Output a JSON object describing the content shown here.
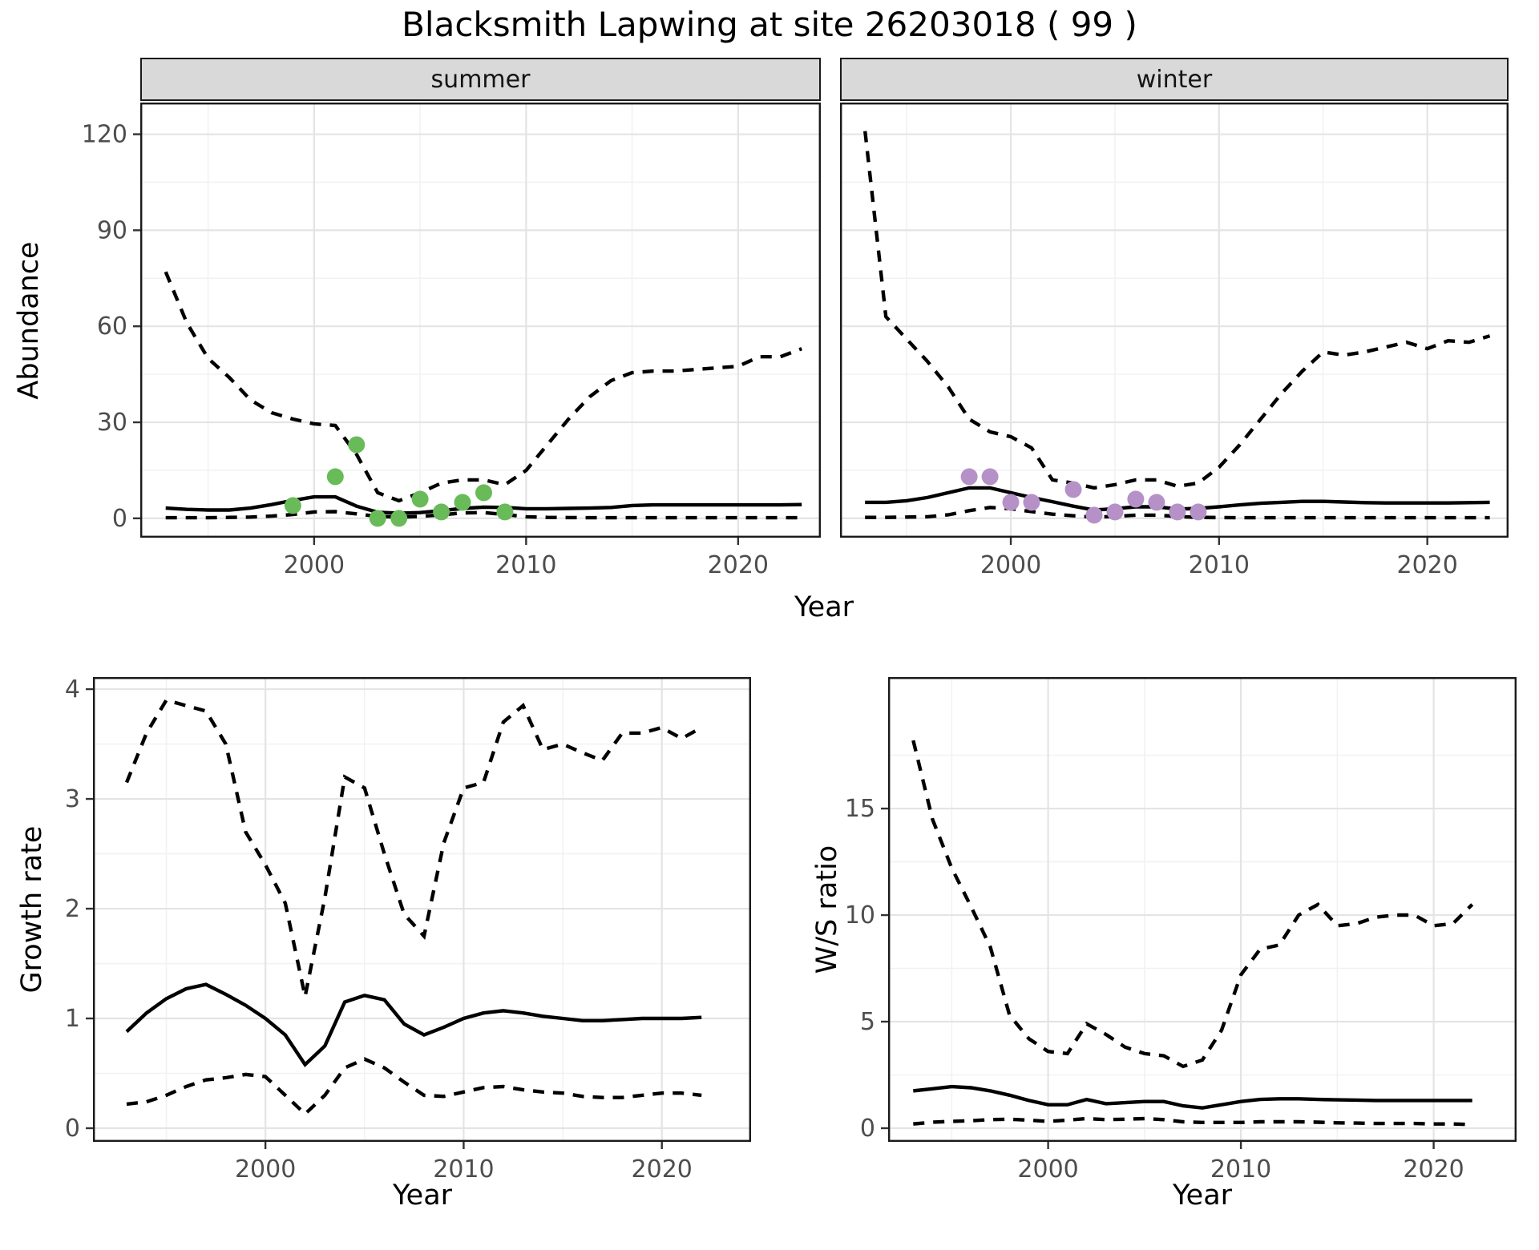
{
  "title": "Blacksmith Lapwing at site 26203018 ( 99 )",
  "colors": {
    "line": "#000000",
    "summer_point": "#69bb59",
    "winter_point": "#b691c8",
    "grid_major": "#e4e4e4",
    "grid_minor": "#f2f2f2",
    "panel_border": "#1a1a1a",
    "tick_mark": "#333333",
    "tick_label": "#4d4d4d",
    "strip_bg": "#d9d9d9"
  },
  "chart_data": [
    {
      "type": "line",
      "facet_label": "summer",
      "xlabel": "Year",
      "ylabel": "Abundance",
      "xlim": [
        1991.8,
        2023.9
      ],
      "ylim": [
        -6.04,
        129.9
      ],
      "xticks": [
        2000,
        2010,
        2020
      ],
      "yticks": [
        0,
        30,
        60,
        90,
        120
      ],
      "xminor": [
        1995,
        2005,
        2015
      ],
      "yminor": [
        15,
        45,
        75,
        105
      ],
      "grid": true,
      "legend": "none",
      "x": [
        1993,
        1994,
        1995,
        1996,
        1997,
        1998,
        1999,
        2000,
        2001,
        2002,
        2003,
        2004,
        2005,
        2006,
        2007,
        2008,
        2009,
        2010,
        2011,
        2012,
        2013,
        2014,
        2015,
        2016,
        2017,
        2018,
        2019,
        2020,
        2021,
        2022,
        2023
      ],
      "series": [
        {
          "name": "upper_95ci",
          "style": "dashed",
          "values": [
            77,
            61,
            50,
            44,
            37,
            33,
            31,
            29.5,
            29,
            20,
            8,
            5.5,
            8,
            11,
            12,
            12,
            10.5,
            15,
            23,
            31,
            38,
            43,
            45.5,
            46,
            46,
            46.5,
            47,
            47.5,
            50.5,
            50.5,
            53
          ]
        },
        {
          "name": "estimate",
          "style": "solid",
          "values": [
            3.2,
            2.8,
            2.6,
            2.6,
            3.2,
            4.3,
            5.6,
            6.7,
            6.7,
            3.8,
            1.9,
            1.6,
            1.8,
            2.4,
            3.1,
            3.5,
            3.4,
            3.0,
            3.0,
            3.1,
            3.2,
            3.4,
            4.0,
            4.2,
            4.2,
            4.2,
            4.2,
            4.2,
            4.2,
            4.2,
            4.3
          ]
        },
        {
          "name": "lower_95ci",
          "style": "dashed",
          "values": [
            0.2,
            0.2,
            0.2,
            0.3,
            0.4,
            0.7,
            1.2,
            2.0,
            2.1,
            1.4,
            0.6,
            0.4,
            0.6,
            1.1,
            1.7,
            1.8,
            1.2,
            0.5,
            0.3,
            0.25,
            0.2,
            0.2,
            0.2,
            0.2,
            0.2,
            0.2,
            0.2,
            0.2,
            0.2,
            0.2,
            0.2
          ]
        }
      ],
      "points": {
        "name": "observed-counts-summer",
        "color": "#69bb59",
        "data": [
          [
            1999,
            4
          ],
          [
            2001,
            13
          ],
          [
            2002,
            23
          ],
          [
            2003,
            0
          ],
          [
            2004,
            0
          ],
          [
            2005,
            6
          ],
          [
            2006,
            2
          ],
          [
            2007,
            5
          ],
          [
            2008,
            8
          ],
          [
            2009,
            2
          ]
        ]
      }
    },
    {
      "type": "line",
      "facet_label": "winter",
      "xlabel": "Year",
      "ylabel": "Abundance",
      "xlim": [
        1991.8,
        2023.9
      ],
      "ylim": [
        -6.04,
        129.9
      ],
      "xticks": [
        2000,
        2010,
        2020
      ],
      "yticks": [
        0,
        30,
        60,
        90,
        120
      ],
      "xminor": [
        1995,
        2005,
        2015
      ],
      "yminor": [
        15,
        45,
        75,
        105
      ],
      "grid": true,
      "legend": "none",
      "x": [
        1993,
        1994,
        1995,
        1996,
        1997,
        1998,
        1999,
        2000,
        2001,
        2002,
        2003,
        2004,
        2005,
        2006,
        2007,
        2008,
        2009,
        2010,
        2011,
        2012,
        2013,
        2014,
        2015,
        2016,
        2017,
        2018,
        2019,
        2020,
        2021,
        2022,
        2023
      ],
      "series": [
        {
          "name": "upper_95ci",
          "style": "dashed",
          "values": [
            121,
            63,
            56,
            49,
            41,
            31,
            27,
            25.5,
            22,
            12,
            11,
            9.5,
            10.5,
            12,
            12,
            10,
            11,
            16,
            23,
            31,
            39,
            46,
            52,
            51,
            52,
            53.5,
            55,
            53,
            55.5,
            55,
            57
          ]
        },
        {
          "name": "estimate",
          "style": "solid",
          "values": [
            5,
            5,
            5.5,
            6.5,
            8,
            9.5,
            9.5,
            8,
            6.5,
            5.2,
            3.8,
            2.6,
            3,
            3.6,
            3.6,
            2.9,
            3.1,
            3.6,
            4.2,
            4.7,
            5,
            5.3,
            5.3,
            5.1,
            4.9,
            4.8,
            4.8,
            4.8,
            4.8,
            4.9,
            5
          ]
        },
        {
          "name": "lower_95ci",
          "style": "dashed",
          "values": [
            0.3,
            0.3,
            0.4,
            0.5,
            1.1,
            2.4,
            3.4,
            3.0,
            2.1,
            1.3,
            0.8,
            0.4,
            0.6,
            1.0,
            1.0,
            0.6,
            0.3,
            0.25,
            0.2,
            0.2,
            0.2,
            0.2,
            0.2,
            0.2,
            0.2,
            0.2,
            0.2,
            0.2,
            0.2,
            0.2,
            0.2
          ]
        }
      ],
      "points": {
        "name": "observed-counts-winter",
        "color": "#b691c8",
        "data": [
          [
            1998,
            13
          ],
          [
            1999,
            13
          ],
          [
            2000,
            5
          ],
          [
            2001,
            5
          ],
          [
            2003,
            9
          ],
          [
            2004,
            1
          ],
          [
            2005,
            2
          ],
          [
            2006,
            6
          ],
          [
            2007,
            5
          ],
          [
            2008,
            2
          ],
          [
            2009,
            2
          ]
        ]
      }
    },
    {
      "type": "line",
      "facet_label": "",
      "xlabel": "Year",
      "ylabel": "Growth rate",
      "xlim": [
        1991.3,
        2024.5
      ],
      "ylim": [
        -0.124,
        4.11
      ],
      "xticks": [
        2000,
        2010,
        2020
      ],
      "yticks": [
        0,
        1,
        2,
        3,
        4
      ],
      "xminor": [
        1995,
        2005,
        2015
      ],
      "yminor": [
        0.5,
        1.5,
        2.5,
        3.5
      ],
      "grid": true,
      "legend": "none",
      "x": [
        1993,
        1994,
        1995,
        1996,
        1997,
        1998,
        1999,
        2000,
        2001,
        2002,
        2003,
        2004,
        2005,
        2006,
        2007,
        2008,
        2009,
        2010,
        2011,
        2012,
        2013,
        2014,
        2015,
        2016,
        2017,
        2018,
        2019,
        2020,
        2021,
        2022
      ],
      "series": [
        {
          "name": "upper_95ci",
          "style": "dashed",
          "values": [
            3.15,
            3.6,
            3.9,
            3.85,
            3.8,
            3.5,
            2.7,
            2.4,
            2.05,
            1.2,
            2.1,
            3.2,
            3.1,
            2.5,
            1.95,
            1.75,
            2.6,
            3.1,
            3.15,
            3.7,
            3.85,
            3.45,
            3.5,
            3.42,
            3.35,
            3.6,
            3.6,
            3.65,
            3.55,
            3.65
          ]
        },
        {
          "name": "estimate",
          "style": "solid",
          "values": [
            0.88,
            1.05,
            1.18,
            1.27,
            1.31,
            1.22,
            1.12,
            1.0,
            0.85,
            0.58,
            0.75,
            1.15,
            1.21,
            1.17,
            0.95,
            0.85,
            0.92,
            1.0,
            1.05,
            1.07,
            1.05,
            1.02,
            1.0,
            0.98,
            0.98,
            0.99,
            1.0,
            1.0,
            1.0,
            1.01
          ]
        },
        {
          "name": "lower_95ci",
          "style": "dashed",
          "values": [
            0.22,
            0.24,
            0.3,
            0.38,
            0.44,
            0.46,
            0.49,
            0.47,
            0.3,
            0.13,
            0.3,
            0.55,
            0.63,
            0.55,
            0.42,
            0.3,
            0.29,
            0.33,
            0.37,
            0.38,
            0.35,
            0.33,
            0.32,
            0.29,
            0.28,
            0.28,
            0.3,
            0.32,
            0.32,
            0.3
          ]
        }
      ],
      "points": null
    },
    {
      "type": "line",
      "facet_label": "",
      "xlabel": "Year",
      "ylabel": "W/S ratio",
      "xlim": [
        1991.7,
        2024.3
      ],
      "ylim": [
        -0.64,
        21.17
      ],
      "xticks": [
        2000,
        2010,
        2020
      ],
      "yticks": [
        0,
        5,
        10,
        15
      ],
      "xminor": [
        1995,
        2005,
        2015
      ],
      "yminor": [
        2.5,
        7.5,
        12.5,
        17.5
      ],
      "grid": true,
      "legend": "none",
      "x": [
        1993,
        1994,
        1995,
        1996,
        1997,
        1998,
        1999,
        2000,
        2001,
        2002,
        2003,
        2004,
        2005,
        2006,
        2007,
        2008,
        2009,
        2010,
        2011,
        2012,
        2013,
        2014,
        2015,
        2016,
        2017,
        2018,
        2019,
        2020,
        2021,
        2022
      ],
      "series": [
        {
          "name": "upper_95ci",
          "style": "dashed",
          "values": [
            18.2,
            14.5,
            12.2,
            10.4,
            8.5,
            5.3,
            4.2,
            3.6,
            3.5,
            4.9,
            4.4,
            3.8,
            3.5,
            3.4,
            2.9,
            3.2,
            4.6,
            7.2,
            8.4,
            8.6,
            10.0,
            10.5,
            9.5,
            9.6,
            9.9,
            10.0,
            10.0,
            9.5,
            9.6,
            10.5
          ]
        },
        {
          "name": "estimate",
          "style": "solid",
          "values": [
            1.75,
            1.85,
            1.95,
            1.9,
            1.75,
            1.55,
            1.3,
            1.1,
            1.1,
            1.35,
            1.15,
            1.2,
            1.25,
            1.25,
            1.05,
            0.95,
            1.1,
            1.25,
            1.35,
            1.38,
            1.38,
            1.35,
            1.33,
            1.32,
            1.3,
            1.3,
            1.3,
            1.3,
            1.3,
            1.3
          ]
        },
        {
          "name": "lower_95ci",
          "style": "dashed",
          "values": [
            0.2,
            0.28,
            0.32,
            0.35,
            0.4,
            0.42,
            0.38,
            0.32,
            0.38,
            0.45,
            0.4,
            0.42,
            0.45,
            0.4,
            0.3,
            0.27,
            0.27,
            0.27,
            0.3,
            0.3,
            0.3,
            0.28,
            0.25,
            0.24,
            0.22,
            0.22,
            0.22,
            0.2,
            0.2,
            0.17
          ]
        }
      ],
      "points": null
    }
  ]
}
